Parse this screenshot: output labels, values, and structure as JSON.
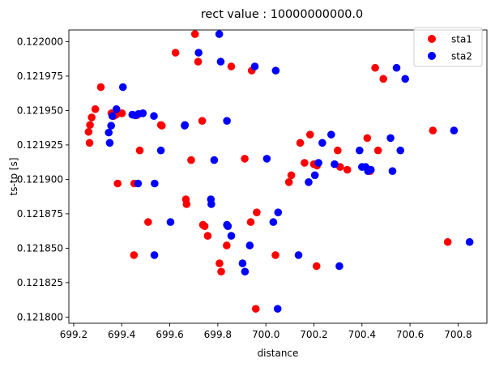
{
  "chart_data": {
    "type": "scatter",
    "title": "rect value : 10000000000.0",
    "xlabel": "distance",
    "ylabel": "ts-tp [s]",
    "xlim": [
      699.18,
      700.92
    ],
    "ylim": [
      0.1217955,
      0.1220085
    ],
    "grid": false,
    "legend_position": "top-right",
    "x_ticks": [
      {
        "value": 699.2,
        "label": "699.2"
      },
      {
        "value": 699.4,
        "label": "699.4"
      },
      {
        "value": 699.6,
        "label": "699.6"
      },
      {
        "value": 699.8,
        "label": "699.8"
      },
      {
        "value": 700.0,
        "label": "700.0"
      },
      {
        "value": 700.2,
        "label": "700.2"
      },
      {
        "value": 700.4,
        "label": "700.4"
      },
      {
        "value": 700.6,
        "label": "700.6"
      },
      {
        "value": 700.8,
        "label": "700.8"
      }
    ],
    "y_ticks": [
      {
        "value": 0.1218,
        "label": "0.121800"
      },
      {
        "value": 0.121825,
        "label": "0.121825"
      },
      {
        "value": 0.12185,
        "label": "0.121850"
      },
      {
        "value": 0.121875,
        "label": "0.121875"
      },
      {
        "value": 0.1219,
        "label": "0.121900"
      },
      {
        "value": 0.121925,
        "label": "0.121925"
      },
      {
        "value": 0.12195,
        "label": "0.121950"
      },
      {
        "value": 0.121975,
        "label": "0.121975"
      },
      {
        "value": 0.122,
        "label": "0.122000"
      }
    ],
    "series": [
      {
        "name": "sta1",
        "color": "#ff0000",
        "points": [
          [
            699.262,
            0.1219345
          ],
          [
            699.266,
            0.1219265
          ],
          [
            699.268,
            0.1219395
          ],
          [
            699.275,
            0.121945
          ],
          [
            699.29,
            0.121951
          ],
          [
            699.313,
            0.121967
          ],
          [
            699.357,
            0.121948
          ],
          [
            699.367,
            0.121946
          ],
          [
            699.377,
            0.121947
          ],
          [
            699.383,
            0.121897
          ],
          [
            699.401,
            0.121948
          ],
          [
            699.451,
            0.121845
          ],
          [
            699.452,
            0.121897
          ],
          [
            699.462,
            0.1219465
          ],
          [
            699.475,
            0.121921
          ],
          [
            699.51,
            0.121869
          ],
          [
            699.563,
            0.1219395
          ],
          [
            699.567,
            0.121939
          ],
          [
            699.624,
            0.121992
          ],
          [
            699.667,
            0.1218855
          ],
          [
            699.67,
            0.121882
          ],
          [
            699.689,
            0.121914
          ],
          [
            699.705,
            0.1220055
          ],
          [
            699.718,
            0.1219855
          ],
          [
            699.735,
            0.1219425
          ],
          [
            699.738,
            0.121867
          ],
          [
            699.745,
            0.121866
          ],
          [
            699.758,
            0.121859
          ],
          [
            699.807,
            0.121839
          ],
          [
            699.814,
            0.121833
          ],
          [
            699.837,
            0.121852
          ],
          [
            699.856,
            0.121982
          ],
          [
            699.912,
            0.121915
          ],
          [
            699.937,
            0.121869
          ],
          [
            699.941,
            0.121979
          ],
          [
            699.958,
            0.121806
          ],
          [
            699.962,
            0.121876
          ],
          [
            700.04,
            0.121845
          ],
          [
            700.096,
            0.121898
          ],
          [
            700.106,
            0.121903
          ],
          [
            700.143,
            0.1219265
          ],
          [
            700.161,
            0.121912
          ],
          [
            700.184,
            0.1219325
          ],
          [
            700.2,
            0.121911
          ],
          [
            700.211,
            0.121837
          ],
          [
            700.213,
            0.12191
          ],
          [
            700.299,
            0.121921
          ],
          [
            700.309,
            0.121909
          ],
          [
            700.339,
            0.121907
          ],
          [
            700.422,
            0.12193
          ],
          [
            700.434,
            0.121906
          ],
          [
            700.455,
            0.121981
          ],
          [
            700.467,
            0.121921
          ],
          [
            700.489,
            0.121973
          ],
          [
            700.695,
            0.1219355
          ],
          [
            700.757,
            0.1218545
          ]
        ]
      },
      {
        "name": "sta2",
        "color": "#0000ff",
        "points": [
          [
            699.346,
            0.121934
          ],
          [
            699.35,
            0.1219265
          ],
          [
            699.356,
            0.121939
          ],
          [
            699.361,
            0.121946
          ],
          [
            699.378,
            0.121951
          ],
          [
            699.405,
            0.121967
          ],
          [
            699.444,
            0.121947
          ],
          [
            699.456,
            0.1219465
          ],
          [
            699.468,
            0.121897
          ],
          [
            699.47,
            0.1219475
          ],
          [
            699.488,
            0.121948
          ],
          [
            699.534,
            0.121946
          ],
          [
            699.536,
            0.121845
          ],
          [
            699.537,
            0.121897
          ],
          [
            699.563,
            0.121921
          ],
          [
            699.603,
            0.121869
          ],
          [
            699.662,
            0.121939
          ],
          [
            699.663,
            0.1219395
          ],
          [
            699.72,
            0.121992
          ],
          [
            699.771,
            0.1218855
          ],
          [
            699.773,
            0.121882
          ],
          [
            699.785,
            0.121914
          ],
          [
            699.806,
            0.1220055
          ],
          [
            699.812,
            0.1219855
          ],
          [
            699.838,
            0.1219425
          ],
          [
            699.838,
            0.121867
          ],
          [
            699.842,
            0.121866
          ],
          [
            699.856,
            0.121859
          ],
          [
            699.903,
            0.121839
          ],
          [
            699.913,
            0.121833
          ],
          [
            699.933,
            0.121852
          ],
          [
            699.954,
            0.121982
          ],
          [
            700.004,
            0.121915
          ],
          [
            700.031,
            0.121869
          ],
          [
            700.041,
            0.121979
          ],
          [
            700.049,
            0.121806
          ],
          [
            700.051,
            0.121876
          ],
          [
            700.136,
            0.121845
          ],
          [
            700.178,
            0.121898
          ],
          [
            700.204,
            0.121903
          ],
          [
            700.219,
            0.121912
          ],
          [
            700.235,
            0.1219265
          ],
          [
            700.272,
            0.1219325
          ],
          [
            700.286,
            0.121911
          ],
          [
            700.306,
            0.121837
          ],
          [
            700.39,
            0.121921
          ],
          [
            700.4,
            0.121909
          ],
          [
            700.415,
            0.121909
          ],
          [
            700.425,
            0.121906
          ],
          [
            700.437,
            0.121907
          ],
          [
            700.519,
            0.12193
          ],
          [
            700.527,
            0.121906
          ],
          [
            700.544,
            0.121981
          ],
          [
            700.56,
            0.121921
          ],
          [
            700.58,
            0.121973
          ],
          [
            700.783,
            0.1219355
          ],
          [
            700.848,
            0.1218545
          ]
        ]
      }
    ]
  }
}
